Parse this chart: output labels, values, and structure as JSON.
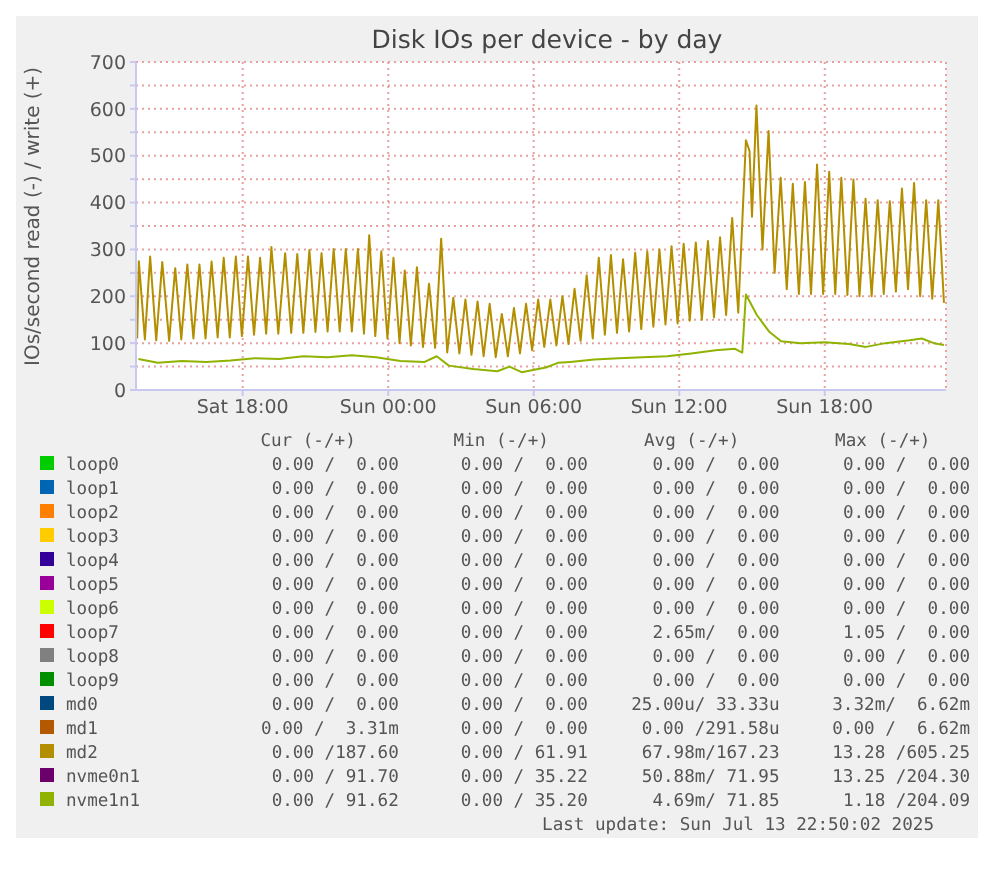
{
  "chart_data": {
    "type": "line",
    "title": "Disk IOs per device - by day",
    "ylabel": "IOs/second read (-) / write (+)",
    "xlim": [
      "2025-07-12T13:36",
      "2025-07-13T23:00"
    ],
    "xticks": [
      {
        "value": "2025-07-12T18:00",
        "label": "Sat 18:00"
      },
      {
        "value": "2025-07-13T00:00",
        "label": "Sun 00:00"
      },
      {
        "value": "2025-07-13T06:00",
        "label": "Sun 06:00"
      },
      {
        "value": "2025-07-13T12:00",
        "label": "Sun 12:00"
      },
      {
        "value": "2025-07-13T18:00",
        "label": "Sun 18:00"
      }
    ],
    "ylim": [
      0,
      700
    ],
    "yticks": [
      0,
      {
        "value": 50,
        "label": null
      },
      100,
      {
        "value": 150,
        "label": null
      },
      200,
      {
        "value": 250,
        "label": null
      },
      300,
      {
        "value": 350,
        "label": null
      },
      400,
      {
        "value": 450,
        "label": null
      },
      500,
      {
        "value": 550,
        "label": null
      },
      600,
      {
        "value": 650,
        "label": null
      },
      700
    ],
    "grid": true,
    "legend": "bottom",
    "marker": "none",
    "line_style": "solid",
    "series": [
      {
        "name": "loop0",
        "color": "#00cc00"
      },
      {
        "name": "loop1",
        "color": "#0066b3"
      },
      {
        "name": "loop2",
        "color": "#ff8000"
      },
      {
        "name": "loop3",
        "color": "#ffcc00"
      },
      {
        "name": "loop4",
        "color": "#330099"
      },
      {
        "name": "loop5",
        "color": "#990099"
      },
      {
        "name": "loop6",
        "color": "#ccff00"
      },
      {
        "name": "loop7",
        "color": "#ff0000"
      },
      {
        "name": "loop8",
        "color": "#808080"
      },
      {
        "name": "loop9",
        "color": "#008f00"
      },
      {
        "name": "md0",
        "color": "#00487d"
      },
      {
        "name": "md1",
        "color": "#b35a00"
      },
      {
        "name": "md2",
        "color": "#b38f00",
        "x": [
          "2025-07-12T13:39",
          "2025-07-12T13:43",
          "2025-07-12T13:58",
          "2025-07-12T14:11",
          "2025-07-12T14:26",
          "2025-07-12T14:41",
          "2025-07-12T14:58",
          "2025-07-12T15:13",
          "2025-07-12T15:28",
          "2025-07-12T15:43",
          "2025-07-12T15:58",
          "2025-07-12T16:13",
          "2025-07-12T16:28",
          "2025-07-12T16:43",
          "2025-07-12T16:58",
          "2025-07-12T17:13",
          "2025-07-12T17:28",
          "2025-07-12T17:43",
          "2025-07-12T17:58",
          "2025-07-12T18:13",
          "2025-07-12T18:28",
          "2025-07-12T18:43",
          "2025-07-12T18:58",
          "2025-07-12T19:11",
          "2025-07-12T19:28",
          "2025-07-12T19:45",
          "2025-07-12T20:00",
          "2025-07-12T20:15",
          "2025-07-12T20:30",
          "2025-07-12T20:45",
          "2025-07-12T21:00",
          "2025-07-12T21:15",
          "2025-07-12T21:30",
          "2025-07-12T21:45",
          "2025-07-12T22:00",
          "2025-07-12T22:15",
          "2025-07-12T22:30",
          "2025-07-12T22:45",
          "2025-07-12T23:00",
          "2025-07-12T23:13",
          "2025-07-12T23:28",
          "2025-07-12T23:43",
          "2025-07-12T23:58",
          "2025-07-13T00:13",
          "2025-07-13T00:28",
          "2025-07-13T00:41",
          "2025-07-13T00:56",
          "2025-07-13T01:11",
          "2025-07-13T01:26",
          "2025-07-13T01:41",
          "2025-07-13T01:56",
          "2025-07-13T02:11",
          "2025-07-13T02:26",
          "2025-07-13T02:41",
          "2025-07-13T02:56",
          "2025-07-13T03:11",
          "2025-07-13T03:26",
          "2025-07-13T03:41",
          "2025-07-13T03:56",
          "2025-07-13T04:11",
          "2025-07-13T04:26",
          "2025-07-13T04:41",
          "2025-07-13T04:56",
          "2025-07-13T05:11",
          "2025-07-13T05:26",
          "2025-07-13T05:41",
          "2025-07-13T05:56",
          "2025-07-13T06:11",
          "2025-07-13T06:26",
          "2025-07-13T06:41",
          "2025-07-13T06:56",
          "2025-07-13T07:11",
          "2025-07-13T07:26",
          "2025-07-13T07:41",
          "2025-07-13T07:56",
          "2025-07-13T08:11",
          "2025-07-13T08:26",
          "2025-07-13T08:41",
          "2025-07-13T08:56",
          "2025-07-13T09:11",
          "2025-07-13T09:26",
          "2025-07-13T09:41",
          "2025-07-13T09:56",
          "2025-07-13T10:11",
          "2025-07-13T10:26",
          "2025-07-13T10:41",
          "2025-07-13T10:56",
          "2025-07-13T11:11",
          "2025-07-13T11:26",
          "2025-07-13T11:41",
          "2025-07-13T11:56",
          "2025-07-13T12:11",
          "2025-07-13T12:26",
          "2025-07-13T12:41",
          "2025-07-13T12:56",
          "2025-07-13T13:11",
          "2025-07-13T13:26",
          "2025-07-13T13:41",
          "2025-07-13T13:56",
          "2025-07-13T14:11",
          "2025-07-13T14:26",
          "2025-07-13T14:45",
          "2025-07-13T14:54",
          "2025-07-13T15:00",
          "2025-07-13T15:11",
          "2025-07-13T15:26",
          "2025-07-13T15:41",
          "2025-07-13T15:56",
          "2025-07-13T16:11",
          "2025-07-13T16:26",
          "2025-07-13T16:41",
          "2025-07-13T16:56",
          "2025-07-13T17:11",
          "2025-07-13T17:26",
          "2025-07-13T17:41",
          "2025-07-13T17:56",
          "2025-07-13T18:11",
          "2025-07-13T18:26",
          "2025-07-13T18:41",
          "2025-07-13T18:56",
          "2025-07-13T19:11",
          "2025-07-13T19:26",
          "2025-07-13T19:41",
          "2025-07-13T19:56",
          "2025-07-13T20:11",
          "2025-07-13T20:26",
          "2025-07-13T20:41",
          "2025-07-13T20:56",
          "2025-07-13T21:11",
          "2025-07-13T21:26",
          "2025-07-13T21:41",
          "2025-07-13T21:56",
          "2025-07-13T22:11",
          "2025-07-13T22:26",
          "2025-07-13T22:41",
          "2025-07-13T22:55"
        ],
        "values": [
          110,
          275,
          108,
          285,
          106,
          273,
          105,
          260,
          108,
          268,
          110,
          268,
          110,
          274,
          112,
          282,
          112,
          285,
          115,
          285,
          118,
          282,
          120,
          305,
          120,
          292,
          122,
          290,
          122,
          299,
          124,
          292,
          125,
          301,
          125,
          301,
          125,
          301,
          120,
          330,
          115,
          296,
          110,
          282,
          100,
          255,
          95,
          262,
          92,
          227,
          90,
          323,
          80,
          197,
          78,
          193,
          75,
          189,
          72,
          184,
          70,
          162,
          72,
          175,
          78,
          184,
          85,
          193,
          92,
          193,
          95,
          200,
          98,
          216,
          105,
          245,
          110,
          282,
          118,
          288,
          122,
          279,
          125,
          293,
          130,
          296,
          135,
          300,
          140,
          307,
          142,
          312,
          148,
          315,
          150,
          318,
          155,
          326,
          160,
          367,
          165,
          533,
          510,
          370,
          607,
          300,
          553,
          250,
          453,
          215,
          440,
          205,
          444,
          205,
          481,
          205,
          466,
          205,
          453,
          203,
          449,
          200,
          408,
          200,
          405,
          205,
          403,
          210,
          430,
          215,
          442,
          200,
          405,
          195,
          405,
          186
        ]
      },
      {
        "name": "nvme0n1",
        "color": "#6b006b"
      },
      {
        "name": "nvme1n1",
        "color": "#8fb300",
        "x": [
          "2025-07-12T13:42",
          "2025-07-12T14:30",
          "2025-07-12T15:30",
          "2025-07-12T16:30",
          "2025-07-12T17:30",
          "2025-07-12T18:30",
          "2025-07-12T19:30",
          "2025-07-12T20:30",
          "2025-07-12T21:30",
          "2025-07-12T22:30",
          "2025-07-12T23:30",
          "2025-07-13T00:30",
          "2025-07-13T01:30",
          "2025-07-13T02:00",
          "2025-07-13T02:30",
          "2025-07-13T03:30",
          "2025-07-13T04:30",
          "2025-07-13T05:00",
          "2025-07-13T05:30",
          "2025-07-13T06:30",
          "2025-07-13T07:00",
          "2025-07-13T07:30",
          "2025-07-13T08:30",
          "2025-07-13T09:30",
          "2025-07-13T10:30",
          "2025-07-13T11:30",
          "2025-07-13T12:30",
          "2025-07-13T13:30",
          "2025-07-13T14:18",
          "2025-07-13T14:36",
          "2025-07-13T14:45",
          "2025-07-13T15:12",
          "2025-07-13T15:42",
          "2025-07-13T16:12",
          "2025-07-13T17:00",
          "2025-07-13T18:00",
          "2025-07-13T19:00",
          "2025-07-13T19:42",
          "2025-07-13T20:30",
          "2025-07-13T21:30",
          "2025-07-13T22:00",
          "2025-07-13T22:30",
          "2025-07-13T22:55"
        ],
        "values": [
          66,
          58,
          62,
          60,
          63,
          68,
          66,
          72,
          70,
          74,
          70,
          62,
          60,
          72,
          52,
          45,
          40,
          50,
          38,
          48,
          58,
          60,
          65,
          68,
          70,
          72,
          78,
          85,
          88,
          80,
          204,
          160,
          125,
          104,
          100,
          102,
          98,
          92,
          100,
          106,
          110,
          100,
          96
        ]
      }
    ],
    "annotations": [
      "Cur (-/+)",
      "Min (-/+)",
      "Avg (-/+)",
      "Max (-/+)",
      "0.00 /  0.00",
      "0.00 /  0.00",
      "0.00 /  0.00",
      "0.00 /  0.00",
      "0.00 /  0.00",
      "0.00 /  0.00",
      "0.00 /  0.00",
      "0.00 /  0.00",
      "0.00 /  0.00",
      "0.00 /  0.00",
      "0.00 /  0.00",
      "0.00 /  0.00",
      "0.00 /  0.00",
      "0.00 /  0.00",
      "0.00 /  0.00",
      "0.00 /  0.00",
      "0.00 /  0.00",
      "0.00 /  0.00",
      "0.00 /  0.00",
      "0.00 /  0.00",
      "0.00 /  0.00",
      "0.00 /  0.00",
      "0.00 /  0.00",
      "0.00 /  0.00",
      "0.00 /  0.00",
      "0.00 /  0.00",
      "0.00 /  0.00",
      "0.00 /  0.00",
      "0.00 /  0.00",
      "0.00 /  0.00",
      "2.65m/  0.00",
      "1.05 /  0.00",
      "0.00 /  0.00",
      "0.00 /  0.00",
      "0.00 /  0.00",
      "0.00 /  0.00",
      "0.00 /  0.00",
      "0.00 /  0.00",
      "0.00 /  0.00",
      "0.00 /  0.00",
      "0.00 /  0.00",
      "0.00 /  0.00",
      "25.00u/ 33.33u",
      "3.32m/  6.62m",
      "0.00 /  3.31m",
      "0.00 /  0.00",
      "0.00 /291.58u",
      "0.00 /  6.62m",
      "0.00 /187.60",
      "0.00 / 61.91",
      "67.98m/167.23",
      "13.28 /605.25",
      "0.00 / 91.70",
      "0.00 / 35.22",
      "50.88m/ 71.95",
      "13.25 /204.30",
      "0.00 / 91.62",
      "0.00 / 35.20",
      "4.69m/ 71.85",
      "1.18 /204.09",
      "Last update: Sun Jul 13 22:50:02 2025"
    ]
  }
}
